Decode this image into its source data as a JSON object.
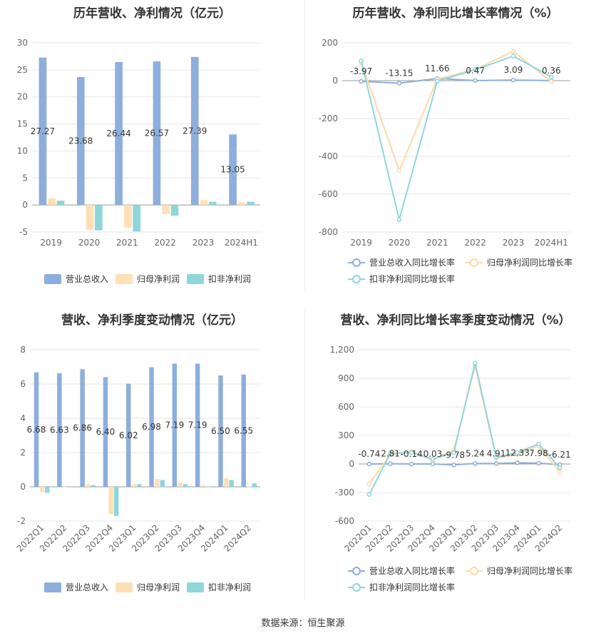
{
  "colors": {
    "revenue": "#8eaedc",
    "net_profit": "#fde0b5",
    "deducted_profit": "#8fd6db",
    "revenue_line": "#8eaedc",
    "net_line": "#fdd9a8",
    "deducted_line": "#8fd6db"
  },
  "source": "数据来源：恒生聚源",
  "charts": [
    {
      "id": "annual-amount",
      "title": "历年营收、净利情况（亿元）",
      "chart_data": {
        "type": "bar",
        "categories": [
          "2019",
          "2020",
          "2021",
          "2022",
          "2023",
          "2024H1"
        ],
        "ylim": [
          -5,
          30
        ],
        "yticks": [
          -5,
          0,
          5,
          10,
          15,
          20,
          25,
          30
        ],
        "series": [
          {
            "name": "营业总收入",
            "values": [
              27.27,
              23.68,
              26.44,
              26.57,
              27.39,
              13.05
            ],
            "labels": [
              "27.27",
              "23.68",
              "26.44",
              "26.57",
              "27.39",
              "13.05"
            ]
          },
          {
            "name": "归母净利润",
            "values": [
              1.2,
              -4.6,
              -4.2,
              -1.7,
              0.9,
              0.5
            ]
          },
          {
            "name": "扣非净利润",
            "values": [
              0.8,
              -4.7,
              -4.9,
              -2.0,
              0.6,
              0.6
            ]
          }
        ],
        "legend": "bottom"
      }
    },
    {
      "id": "annual-growth",
      "title": "历年营收、净利同比增长率情况（%）",
      "chart_data": {
        "type": "line",
        "categories": [
          "2019",
          "2020",
          "2021",
          "2022",
          "2023",
          "2024H1"
        ],
        "ylim": [
          -800,
          200
        ],
        "yticks": [
          -800,
          -600,
          -400,
          -200,
          0,
          200
        ],
        "series": [
          {
            "name": "营业总收入同比增长率",
            "values": [
              -3.97,
              -13.15,
              11.66,
              0.47,
              3.09,
              0.36
            ],
            "labels": [
              "-3.97",
              "-13.15",
              "11.66",
              "0.47",
              "3.09",
              "0.36"
            ]
          },
          {
            "name": "归母净利润同比增长率",
            "values": [
              95,
              -475,
              8,
              60,
              155,
              -5
            ]
          },
          {
            "name": "扣非净利润同比增长率",
            "values": [
              105,
              -735,
              -2,
              58,
              130,
              20
            ]
          }
        ],
        "legend": "bottom"
      }
    },
    {
      "id": "quarterly-amount",
      "title": "营收、净利季度变动情况（亿元）",
      "chart_data": {
        "type": "bar",
        "categories": [
          "2022Q1",
          "2022Q2",
          "2022Q3",
          "2022Q4",
          "2023Q1",
          "2023Q2",
          "2023Q3",
          "2023Q4",
          "2024Q1",
          "2024Q2"
        ],
        "ylim": [
          -2,
          8
        ],
        "yticks": [
          -2,
          0,
          2,
          4,
          6,
          8
        ],
        "series": [
          {
            "name": "营业总收入",
            "values": [
              6.68,
              6.63,
              6.86,
              6.4,
              6.02,
              6.98,
              7.19,
              7.19,
              6.5,
              6.55
            ],
            "labels": [
              "6.68",
              "6.63",
              "6.86",
              "6.40",
              "6.02",
              "6.98",
              "7.19",
              "7.19",
              "6.50",
              "6.55"
            ]
          },
          {
            "name": "归母净利润",
            "values": [
              -0.3,
              0.0,
              0.15,
              -1.6,
              0.15,
              0.45,
              0.25,
              0.1,
              0.5,
              0.02
            ]
          },
          {
            "name": "扣非净利润",
            "values": [
              -0.35,
              -0.02,
              0.1,
              -1.7,
              0.15,
              0.4,
              0.15,
              0.02,
              0.4,
              0.2
            ]
          }
        ],
        "legend": "bottom"
      }
    },
    {
      "id": "quarterly-growth",
      "title": "营收、净利同比增长率季度变动情况（%）",
      "chart_data": {
        "type": "line",
        "categories": [
          "2022Q1",
          "2022Q2",
          "2022Q3",
          "2022Q4",
          "2023Q1",
          "2023Q2",
          "2023Q3",
          "2023Q4",
          "2024Q1",
          "2024Q2"
        ],
        "ylim": [
          -600,
          1200
        ],
        "yticks": [
          -600,
          -300,
          0,
          300,
          600,
          900,
          1200
        ],
        "ytick_labels": [
          "-600",
          "-300",
          "0",
          "300",
          "600",
          "900",
          "1,200"
        ],
        "series": [
          {
            "name": "营业总收入同比增长率",
            "values": [
              -0.74,
              2.81,
              -0.14,
              0.03,
              -9.78,
              5.24,
              4.91,
              12.33,
              7.98,
              -6.21
            ],
            "labels": [
              "-0.74",
              "2.81",
              "-0.14",
              "0.03",
              "-9.78",
              "5.24",
              "4.91",
              "12.33",
              "7.98",
              "-6.21"
            ]
          },
          {
            "name": "归母净利润同比增长率",
            "values": [
              -210,
              100,
              130,
              40,
              150,
              1030,
              60,
              100,
              190,
              -85
            ]
          },
          {
            "name": "扣非净利润同比增长率",
            "values": [
              -320,
              110,
              120,
              50,
              120,
              1060,
              70,
              120,
              210,
              -40
            ]
          }
        ],
        "legend": "bottom"
      }
    }
  ]
}
